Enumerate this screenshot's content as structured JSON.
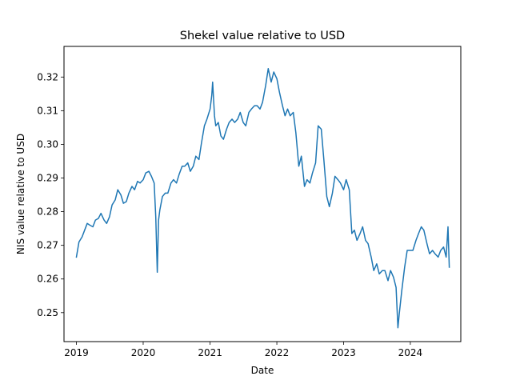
{
  "chart_data": {
    "type": "line",
    "title": "Shekel value relative to USD",
    "xlabel": "Date",
    "ylabel": "NIS value relative to USD",
    "xlim": [
      "2018-10-25",
      "2024-10-03"
    ],
    "ylim": [
      0.2414,
      0.3291
    ],
    "x_ticks": [
      "2019",
      "2020",
      "2021",
      "2022",
      "2023",
      "2024"
    ],
    "y_ticks": [
      "0.25",
      "0.26",
      "0.27",
      "0.28",
      "0.29",
      "0.30",
      "0.31",
      "0.32"
    ],
    "grid": false,
    "legend": "none",
    "line_color": "#1f77b4",
    "series": [
      {
        "x": [
          "2019-01-01",
          "2019-01-15",
          "2019-02-01",
          "2019-02-15",
          "2019-03-01",
          "2019-03-15",
          "2019-04-01",
          "2019-04-15",
          "2019-05-01",
          "2019-05-15",
          "2019-06-01",
          "2019-06-15",
          "2019-07-01",
          "2019-07-15",
          "2019-08-01",
          "2019-08-15",
          "2019-09-01",
          "2019-09-15",
          "2019-10-01",
          "2019-10-15",
          "2019-11-01",
          "2019-11-15",
          "2019-12-01",
          "2019-12-15",
          "2020-01-01",
          "2020-01-15",
          "2020-02-01",
          "2020-02-15",
          "2020-03-01",
          "2020-03-10",
          "2020-03-18",
          "2020-03-25",
          "2020-04-01",
          "2020-04-15",
          "2020-05-01",
          "2020-05-15",
          "2020-06-01",
          "2020-06-15",
          "2020-07-01",
          "2020-07-15",
          "2020-08-01",
          "2020-08-15",
          "2020-09-01",
          "2020-09-15",
          "2020-10-01",
          "2020-10-15",
          "2020-11-01",
          "2020-11-15",
          "2020-12-01",
          "2020-12-15",
          "2021-01-01",
          "2021-01-10",
          "2021-01-15",
          "2021-01-25",
          "2021-02-01",
          "2021-02-15",
          "2021-03-01",
          "2021-03-15",
          "2021-04-01",
          "2021-04-15",
          "2021-05-01",
          "2021-05-15",
          "2021-06-01",
          "2021-06-15",
          "2021-07-01",
          "2021-07-15",
          "2021-08-01",
          "2021-08-15",
          "2021-09-01",
          "2021-09-15",
          "2021-10-01",
          "2021-10-15",
          "2021-11-01",
          "2021-11-15",
          "2021-12-01",
          "2021-12-15",
          "2022-01-01",
          "2022-01-15",
          "2022-02-01",
          "2022-02-15",
          "2022-03-01",
          "2022-03-15",
          "2022-04-01",
          "2022-04-15",
          "2022-05-01",
          "2022-05-15",
          "2022-06-01",
          "2022-06-15",
          "2022-07-01",
          "2022-07-15",
          "2022-08-01",
          "2022-08-15",
          "2022-09-01",
          "2022-09-15",
          "2022-10-01",
          "2022-10-15",
          "2022-11-01",
          "2022-11-15",
          "2022-12-01",
          "2022-12-15",
          "2023-01-01",
          "2023-01-15",
          "2023-02-01",
          "2023-02-15",
          "2023-03-01",
          "2023-03-15",
          "2023-04-01",
          "2023-04-15",
          "2023-05-01",
          "2023-05-15",
          "2023-06-01",
          "2023-06-15",
          "2023-07-01",
          "2023-07-15",
          "2023-08-01",
          "2023-08-15",
          "2023-09-01",
          "2023-09-15",
          "2023-10-01",
          "2023-10-15",
          "2023-10-25",
          "2023-11-01",
          "2023-11-15",
          "2023-12-01",
          "2023-12-15",
          "2024-01-01",
          "2024-01-15",
          "2024-02-01",
          "2024-02-15",
          "2024-03-01",
          "2024-03-15",
          "2024-04-01",
          "2024-04-15",
          "2024-05-01",
          "2024-05-15",
          "2024-06-01",
          "2024-06-15",
          "2024-07-01",
          "2024-07-15",
          "2024-07-25",
          "2024-08-01"
        ],
        "y": [
          0.2665,
          0.271,
          0.2725,
          0.2745,
          0.2765,
          0.276,
          0.2755,
          0.2775,
          0.278,
          0.2795,
          0.2775,
          0.2765,
          0.2785,
          0.282,
          0.2835,
          0.2865,
          0.285,
          0.2825,
          0.283,
          0.2855,
          0.2875,
          0.2865,
          0.289,
          0.2885,
          0.2895,
          0.2915,
          0.292,
          0.2905,
          0.2885,
          0.2785,
          0.262,
          0.2775,
          0.2805,
          0.2845,
          0.2855,
          0.2855,
          0.2885,
          0.2895,
          0.2885,
          0.291,
          0.2935,
          0.2935,
          0.2945,
          0.292,
          0.2935,
          0.2965,
          0.2955,
          0.3005,
          0.3055,
          0.3075,
          0.3105,
          0.3145,
          0.3185,
          0.3085,
          0.3055,
          0.3065,
          0.3025,
          0.3015,
          0.3045,
          0.3065,
          0.3075,
          0.3065,
          0.3075,
          0.3095,
          0.3065,
          0.3055,
          0.3095,
          0.3105,
          0.3115,
          0.3115,
          0.3105,
          0.3125,
          0.3175,
          0.3225,
          0.3185,
          0.3215,
          0.3195,
          0.3155,
          0.3115,
          0.3085,
          0.3105,
          0.3085,
          0.3095,
          0.3035,
          0.2935,
          0.2965,
          0.2875,
          0.2895,
          0.2885,
          0.2915,
          0.2945,
          0.3055,
          0.3045,
          0.2955,
          0.2845,
          0.2815,
          0.2855,
          0.2905,
          0.2895,
          0.2885,
          0.2865,
          0.2895,
          0.2865,
          0.2735,
          0.2745,
          0.2715,
          0.2735,
          0.2755,
          0.2715,
          0.2705,
          0.2665,
          0.2625,
          0.2645,
          0.2615,
          0.2625,
          0.2625,
          0.2595,
          0.2625,
          0.2605,
          0.2575,
          0.2455,
          0.2495,
          0.2565,
          0.2635,
          0.2685,
          0.2685,
          0.2685,
          0.2715,
          0.2735,
          0.2755,
          0.2745,
          0.2705,
          0.2675,
          0.2685,
          0.2675,
          0.2665,
          0.2685,
          0.2695,
          0.2665,
          0.2755,
          0.2635
        ]
      }
    ]
  }
}
